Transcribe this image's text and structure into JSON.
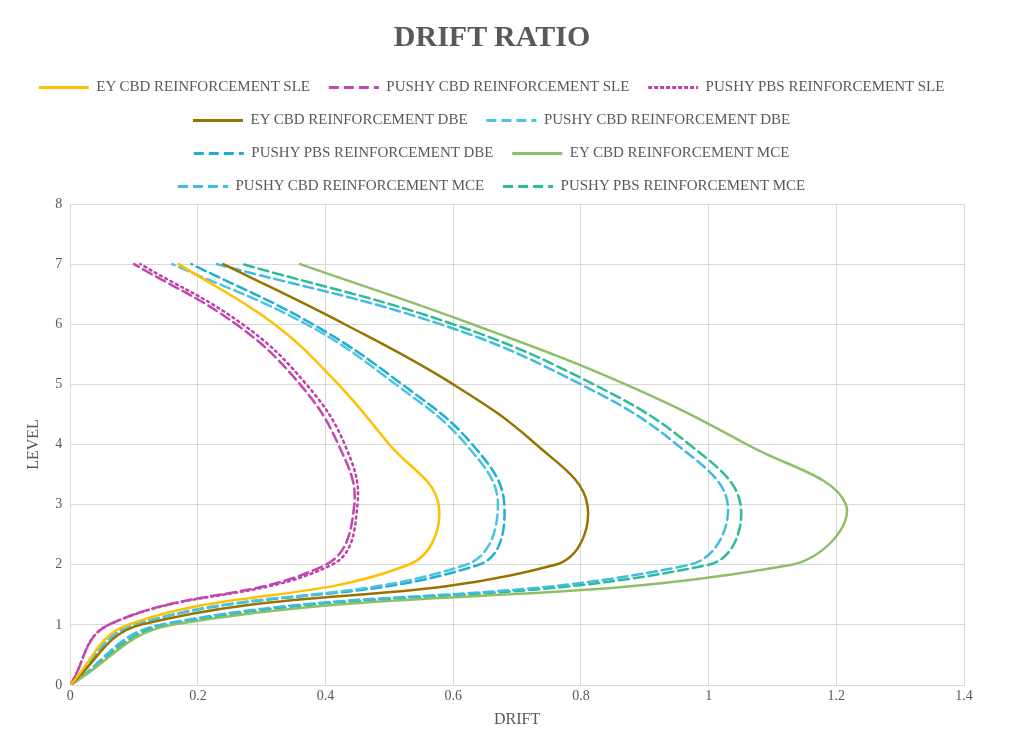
{
  "chart_data": {
    "type": "line",
    "title": "DRIFT RATIO",
    "xlabel": "DRIFT",
    "ylabel": "LEVEL",
    "xlim": [
      0,
      1.4
    ],
    "xticks": [
      0,
      0.2,
      0.4,
      0.6,
      0.8,
      1,
      1.2,
      1.4
    ],
    "ylim": [
      0,
      8
    ],
    "yticks": [
      0,
      1,
      2,
      3,
      4,
      5,
      6,
      7,
      8
    ],
    "grid": true,
    "legend": "top",
    "marker": "none",
    "series": [
      {
        "name": "EY CBD REINFORCEMENT SLE",
        "color": "#ffc000",
        "line_style": "solid",
        "x": [
          0,
          0.09,
          0.53,
          0.577,
          0.5,
          0.42,
          0.32,
          0.17
        ],
        "values": [
          0,
          1,
          2,
          3,
          4,
          5,
          6,
          7
        ]
      },
      {
        "name": "PUSHY CBD REINFORCEMENT SLE",
        "color": "#c048b0",
        "line_style": "dashed",
        "x": [
          0,
          0.06,
          0.4,
          0.445,
          0.42,
          0.36,
          0.26,
          0.1
        ],
        "values": [
          0,
          1,
          2,
          3,
          4,
          5,
          6,
          7
        ]
      },
      {
        "name": "PUSHY PBS REINFORCEMENT SLE",
        "color": "#c040a8",
        "line_style": "dotted",
        "x": [
          0,
          0.06,
          0.41,
          0.45,
          0.43,
          0.37,
          0.27,
          0.11
        ],
        "values": [
          0,
          1,
          2,
          3,
          4,
          5,
          6,
          7
        ]
      },
      {
        "name": "EY CBD REINFORCEMENT DBE",
        "color": "#997300",
        "line_style": "solid",
        "x": [
          0,
          0.11,
          0.76,
          0.81,
          0.73,
          0.6,
          0.43,
          0.24
        ],
        "values": [
          0,
          1,
          2,
          3,
          4,
          5,
          6,
          7
        ]
      },
      {
        "name": "PUSHY CBD REINFORCEMENT DBE",
        "color": "#4cc4e0",
        "line_style": "dashed",
        "x": [
          0,
          0.1,
          0.62,
          0.67,
          0.62,
          0.51,
          0.37,
          0.16
        ],
        "values": [
          0,
          1,
          2,
          3,
          4,
          5,
          6,
          7
        ]
      },
      {
        "name": "PUSHY PBS REINFORCEMENT DBE",
        "color": "#1fb0d0",
        "line_style": "dashed",
        "x": [
          0,
          0.1,
          0.64,
          0.68,
          0.63,
          0.52,
          0.38,
          0.19
        ],
        "values": [
          0,
          1,
          2,
          3,
          4,
          5,
          6,
          7
        ]
      },
      {
        "name": "EY CBD REINFORCEMENT MCE",
        "color": "#8cc068",
        "line_style": "solid",
        "x": [
          0,
          0.16,
          1.13,
          1.215,
          1.06,
          0.87,
          0.63,
          0.36
        ],
        "values": [
          0,
          1,
          2,
          3,
          4,
          5,
          6,
          7
        ]
      },
      {
        "name": "PUSHY CBD REINFORCEMENT MCE",
        "color": "#40bce0",
        "line_style": "dashed",
        "x": [
          0,
          0.14,
          0.97,
          1.03,
          0.95,
          0.8,
          0.58,
          0.23
        ],
        "values": [
          0,
          1,
          2,
          3,
          4,
          5,
          6,
          7
        ]
      },
      {
        "name": "PUSHY PBS REINFORCEMENT MCE",
        "color": "#2cbc98",
        "line_style": "dashed",
        "x": [
          0,
          0.15,
          1,
          1.05,
          0.97,
          0.82,
          0.6,
          0.27
        ],
        "values": [
          0,
          1,
          2,
          3,
          4,
          5,
          6,
          7
        ]
      }
    ]
  }
}
